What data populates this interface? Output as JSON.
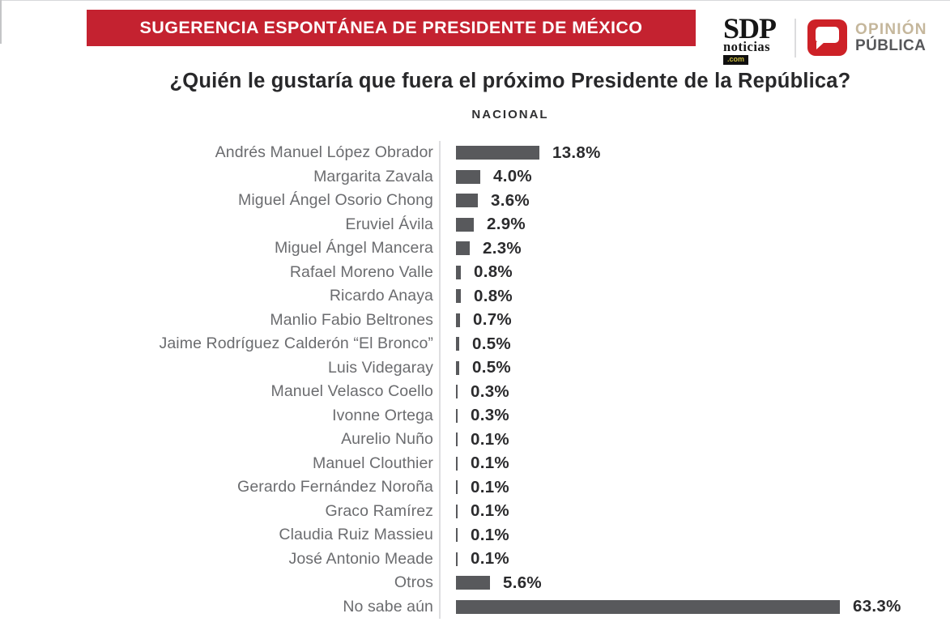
{
  "banner": {
    "title": "SUGERENCIA ESPONTÁNEA DE PRESIDENTE DE MÉXICO",
    "bg_color": "#c42230"
  },
  "brand": {
    "sdp": {
      "name": "SDP",
      "sub": "noticias",
      "domain": ".com"
    },
    "opinion": {
      "line1": "OPINIÓN",
      "line2": "PÚBLICA",
      "icon": "speech-bubble-icon",
      "icon_color": "#cd2127"
    }
  },
  "question": "¿Quién le gustaría que fuera el próximo Presidente de la República?",
  "subtitle": "NACIONAL",
  "chart_data": {
    "type": "bar",
    "orientation": "horizontal",
    "title": "NACIONAL",
    "grid": false,
    "legend": false,
    "xlim": [
      0,
      65
    ],
    "bar_color": "#58595c",
    "categories": [
      "Andrés Manuel López Obrador",
      "Margarita Zavala",
      "Miguel Ángel Osorio Chong",
      "Eruviel Ávila",
      "Miguel Ángel Mancera",
      "Rafael Moreno Valle",
      "Ricardo Anaya",
      "Manlio Fabio Beltrones",
      "Jaime Rodríguez Calderón “El Bronco”",
      "Luis Videgaray",
      "Manuel Velasco Coello",
      "Ivonne Ortega",
      "Aurelio Nuño",
      "Manuel Clouthier",
      "Gerardo Fernández Noroña",
      "Graco Ramírez",
      "Claudia Ruiz Massieu",
      "José Antonio Meade",
      "Otros",
      "No sabe aún"
    ],
    "values": [
      13.8,
      4.0,
      3.6,
      2.9,
      2.3,
      0.8,
      0.8,
      0.7,
      0.5,
      0.5,
      0.3,
      0.3,
      0.1,
      0.1,
      0.1,
      0.1,
      0.1,
      0.1,
      5.6,
      63.3
    ],
    "value_labels": [
      "13.8%",
      "4.0%",
      "3.6%",
      "2.9%",
      "2.3%",
      "0.8%",
      "0.8%",
      "0.7%",
      "0.5%",
      "0.5%",
      "0.3%",
      "0.3%",
      "0.1%",
      "0.1%",
      "0.1%",
      "0.1%",
      "0.1%",
      "0.1%",
      "5.6%",
      "63.3%"
    ]
  }
}
